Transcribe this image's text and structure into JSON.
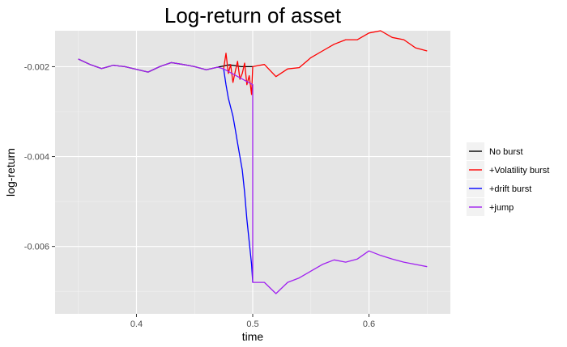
{
  "chart_data": {
    "type": "line",
    "title": "Log-return of asset",
    "xlabel": "time",
    "ylabel": "log-return",
    "xlim": [
      0.33,
      0.67
    ],
    "ylim": [
      -0.0075,
      -0.0012
    ],
    "xticks": [
      0.4,
      0.5,
      0.6
    ],
    "xtick_labels": [
      "0.4",
      "0.5",
      "0.6"
    ],
    "yticks": [
      -0.002,
      -0.004,
      -0.006
    ],
    "ytick_labels": [
      "-0.002",
      "-0.004",
      "-0.006"
    ],
    "grid": true,
    "legend_position": "right",
    "background": "#e5e5e5",
    "series": [
      {
        "name": "No burst",
        "color": "#000000",
        "x": [
          0.35,
          0.36,
          0.37,
          0.38,
          0.39,
          0.4,
          0.41,
          0.42,
          0.43,
          0.44,
          0.45,
          0.46,
          0.47,
          0.48,
          0.49,
          0.5
        ],
        "y": [
          -0.00183,
          -0.00195,
          -0.00204,
          -0.00197,
          -0.002,
          -0.00206,
          -0.00212,
          -0.002,
          -0.00191,
          -0.00195,
          -0.002,
          -0.00207,
          -0.00201,
          -0.00196,
          -0.002,
          -0.002
        ]
      },
      {
        "name": "+Volatility burst",
        "color": "#ff0000",
        "x": [
          0.475,
          0.477,
          0.479,
          0.481,
          0.483,
          0.485,
          0.487,
          0.489,
          0.491,
          0.493,
          0.495,
          0.497,
          0.499,
          0.5,
          0.51,
          0.52,
          0.53,
          0.54,
          0.55,
          0.56,
          0.57,
          0.58,
          0.59,
          0.6,
          0.61,
          0.62,
          0.63,
          0.64,
          0.65
        ],
        "y": [
          -0.00205,
          -0.0017,
          -0.00215,
          -0.00195,
          -0.00235,
          -0.0021,
          -0.00188,
          -0.00228,
          -0.00215,
          -0.00192,
          -0.0024,
          -0.0022,
          -0.00262,
          -0.002,
          -0.00195,
          -0.00222,
          -0.00205,
          -0.00202,
          -0.0018,
          -0.00165,
          -0.0015,
          -0.0014,
          -0.0014,
          -0.00125,
          -0.0012,
          -0.00135,
          -0.0014,
          -0.00158,
          -0.00165
        ]
      },
      {
        "name": "+drift burst",
        "color": "#0000ff",
        "x": [
          0.475,
          0.477,
          0.479,
          0.481,
          0.483,
          0.485,
          0.487,
          0.489,
          0.491,
          0.493,
          0.495,
          0.497,
          0.499,
          0.5
        ],
        "y": [
          -0.00205,
          -0.0024,
          -0.0027,
          -0.0029,
          -0.0031,
          -0.0034,
          -0.0037,
          -0.004,
          -0.0043,
          -0.0048,
          -0.0054,
          -0.0059,
          -0.0064,
          -0.0068
        ]
      },
      {
        "name": "+jump",
        "color": "#a020f0",
        "x": [
          0.35,
          0.36,
          0.37,
          0.38,
          0.39,
          0.4,
          0.41,
          0.42,
          0.43,
          0.44,
          0.45,
          0.46,
          0.47,
          0.475,
          0.5,
          0.5,
          0.51,
          0.52,
          0.53,
          0.54,
          0.55,
          0.56,
          0.57,
          0.58,
          0.59,
          0.6,
          0.61,
          0.62,
          0.63,
          0.64,
          0.65
        ],
        "y": [
          -0.00183,
          -0.00195,
          -0.00204,
          -0.00197,
          -0.002,
          -0.00206,
          -0.00212,
          -0.002,
          -0.00191,
          -0.00195,
          -0.002,
          -0.00207,
          -0.00201,
          -0.00205,
          -0.0024,
          -0.0068,
          -0.0068,
          -0.00705,
          -0.0068,
          -0.0067,
          -0.00655,
          -0.0064,
          -0.0063,
          -0.00635,
          -0.00628,
          -0.0061,
          -0.0062,
          -0.00628,
          -0.00635,
          -0.0064,
          -0.00645
        ]
      }
    ]
  }
}
